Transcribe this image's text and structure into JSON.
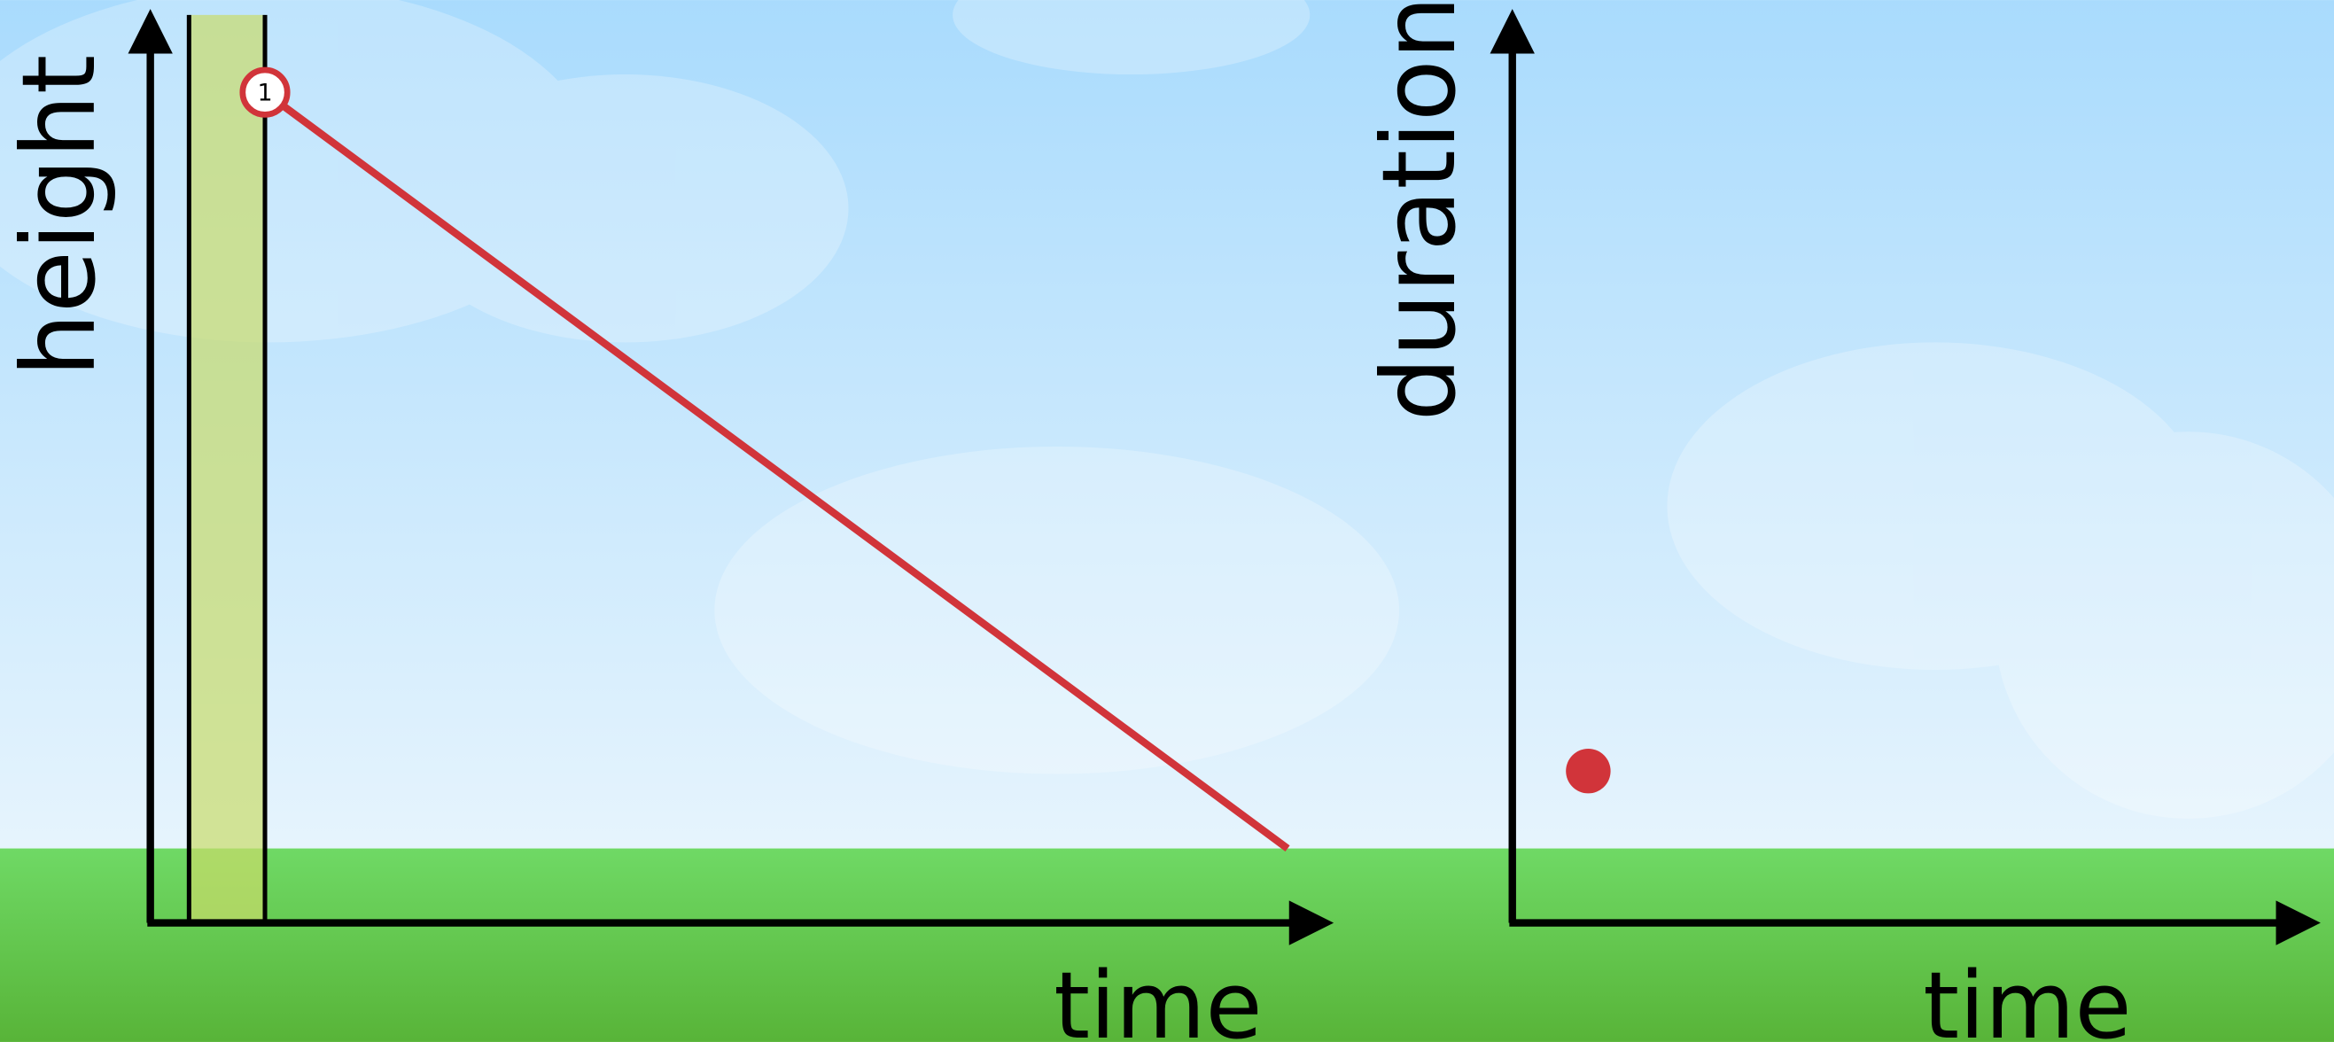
{
  "left_graph": {
    "y_label": "height",
    "x_label": "time",
    "marker_label": "1"
  },
  "right_graph": {
    "y_label": "duration",
    "x_label": "time"
  }
}
